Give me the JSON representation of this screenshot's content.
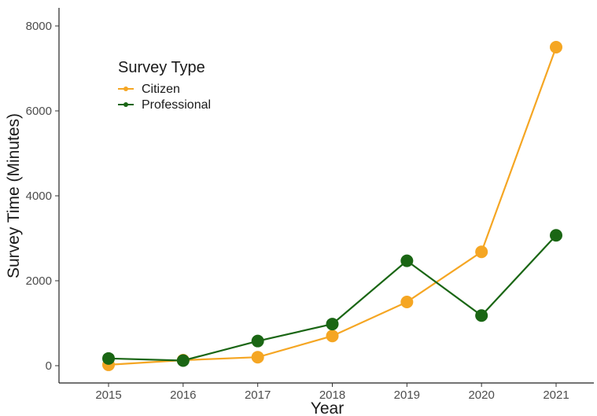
{
  "chart_data": {
    "type": "line",
    "x": [
      "2015",
      "2016",
      "2017",
      "2018",
      "2019",
      "2020",
      "2021"
    ],
    "series": [
      {
        "name": "Citizen",
        "color": "#f5a623",
        "values": [
          20,
          130,
          200,
          700,
          1500,
          2680,
          7500
        ]
      },
      {
        "name": "Professional",
        "color": "#1a6614",
        "values": [
          170,
          120,
          580,
          980,
          2470,
          1180,
          3070
        ]
      }
    ],
    "xlabel": "Year",
    "ylabel": "Survey Time (Minutes)",
    "ylim": [
      -400,
      8400
    ],
    "yticks": [
      "0",
      "2000",
      "4000",
      "6000",
      "8000"
    ],
    "legend": {
      "title": "Survey Type",
      "position": "top-left"
    },
    "grid": false
  }
}
